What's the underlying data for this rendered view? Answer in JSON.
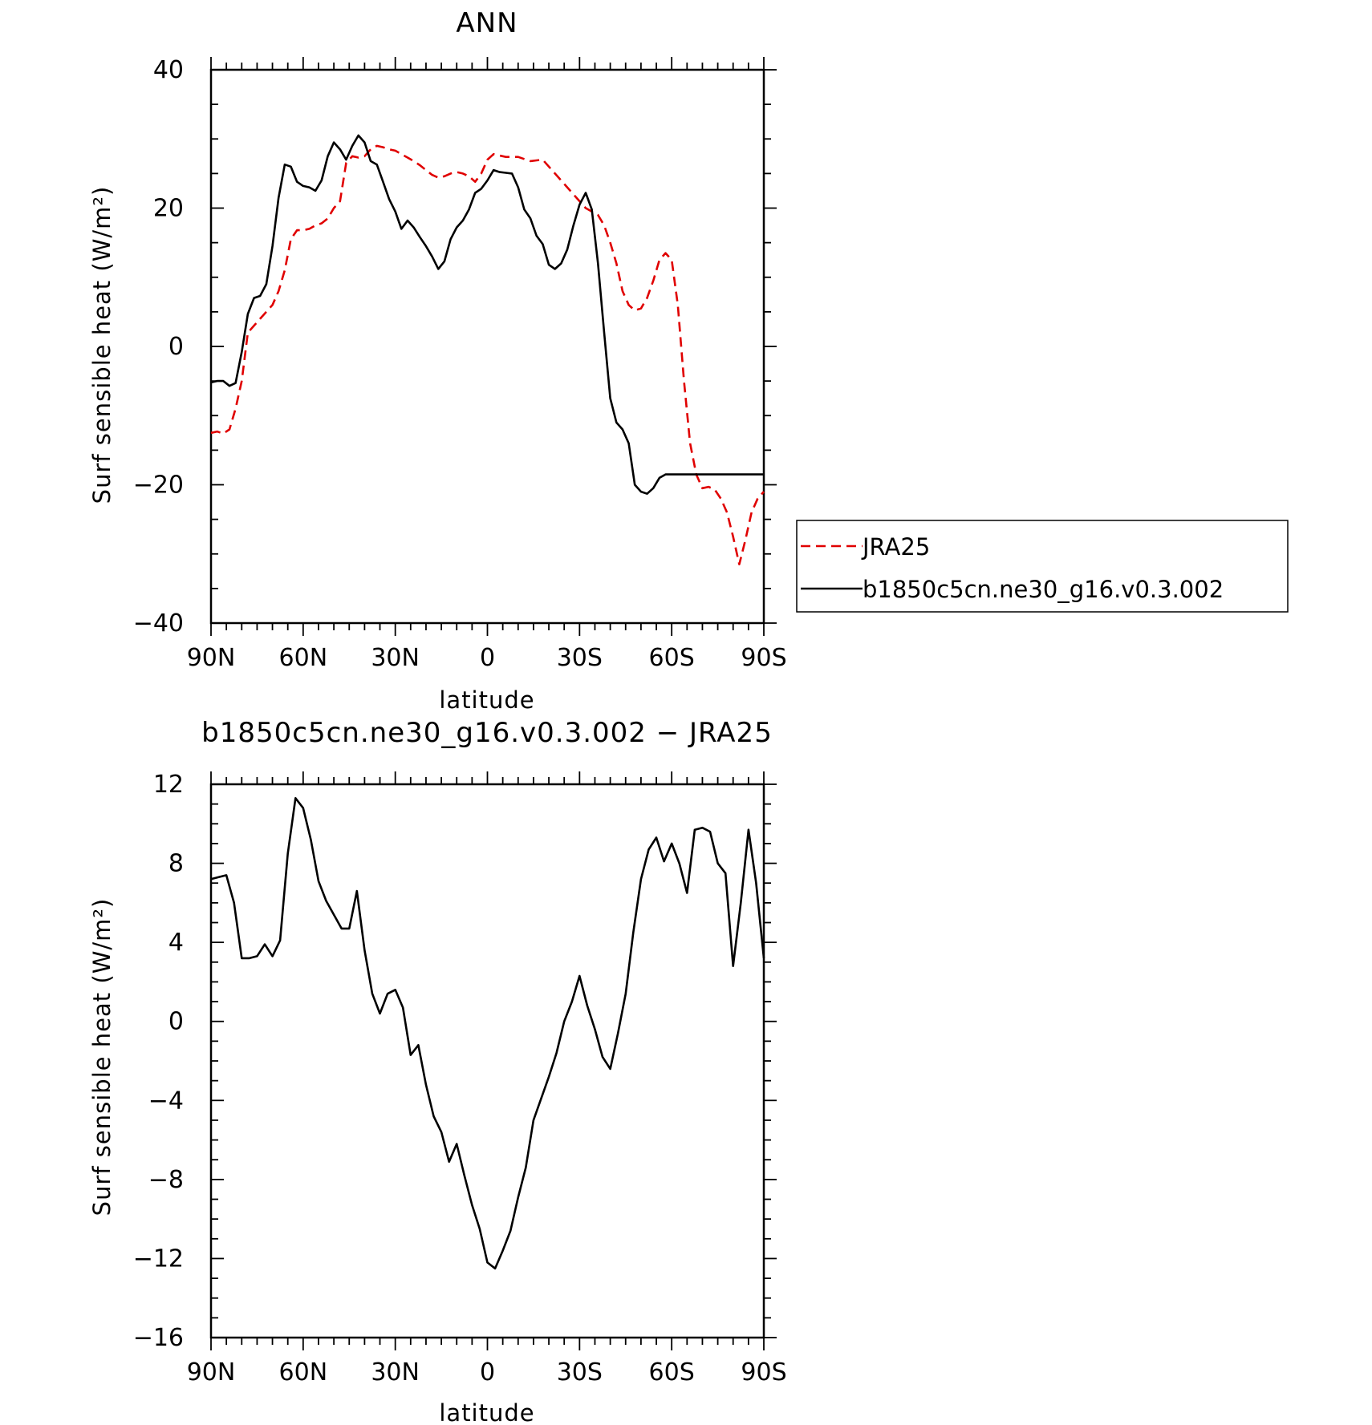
{
  "chart_data": [
    {
      "type": "line",
      "title": "ANN",
      "xlabel": "latitude",
      "ylabel": "Surf sensible heat (W/m²)",
      "ylim": [
        -40,
        40
      ],
      "yticks": [
        "40",
        "20",
        "0",
        "−20",
        "−40"
      ],
      "xticks": [
        "90N",
        "60N",
        "30N",
        "0",
        "30S",
        "60S",
        "90S"
      ],
      "legend": {
        "position": "right-middle",
        "entries": [
          "JRA25",
          "b1850c5cn.ne30_g16.v0.3.002"
        ]
      },
      "series": [
        {
          "name": "JRA25",
          "color": "#e00000",
          "style": "dashed",
          "x": [
            90,
            88,
            86,
            84,
            82,
            80,
            78,
            76,
            74,
            72,
            70,
            68,
            66,
            64,
            62,
            60,
            58,
            56,
            54,
            52,
            50,
            48,
            46,
            44,
            42,
            40,
            38,
            36,
            34,
            32,
            30,
            28,
            26,
            24,
            22,
            20,
            18,
            16,
            14,
            12,
            10,
            8,
            6,
            4,
            2,
            0,
            -2,
            -4,
            -6,
            -8,
            -10,
            -12,
            -14,
            -16,
            -18,
            -20,
            -22,
            -24,
            -26,
            -28,
            -30,
            -32,
            -34,
            -36,
            -38,
            -40,
            -42,
            -44,
            -46,
            -48,
            -50,
            -52,
            -54,
            -56,
            -58,
            -60,
            -62,
            -64,
            -66,
            -68,
            -70,
            -72,
            -74,
            -76,
            -78,
            -80,
            -82,
            -84,
            -86,
            -88,
            -90
          ],
          "y": [
            -12.5,
            -12.3,
            -12.6,
            -12.0,
            -9.0,
            -5.0,
            2.0,
            3.0,
            4.0,
            5.0,
            6.0,
            8.0,
            11.0,
            15.5,
            16.8,
            16.8,
            17.0,
            17.5,
            17.8,
            18.5,
            20.0,
            21.0,
            26.5,
            27.5,
            27.3,
            27.5,
            28.5,
            29.0,
            28.8,
            28.5,
            28.3,
            27.8,
            27.3,
            26.8,
            26.2,
            25.5,
            24.8,
            24.4,
            24.6,
            25.0,
            25.2,
            25.0,
            24.6,
            23.8,
            25.0,
            27.0,
            27.8,
            27.6,
            27.4,
            27.4,
            27.4,
            27.1,
            26.8,
            26.9,
            27.0,
            26.0,
            25.0,
            24.0,
            23.0,
            22.0,
            21.0,
            20.0,
            19.5,
            19.0,
            17.5,
            15.0,
            12.0,
            8.0,
            6.0,
            5.2,
            5.5,
            7.0,
            9.5,
            12.5,
            13.5,
            12.5,
            6.0,
            -5.0,
            -14.0,
            -18.5,
            -20.5,
            -20.3,
            -20.7,
            -22.0,
            -24.0,
            -27.5,
            -31.5,
            -28.0,
            -24.0,
            -22.0,
            -21.0
          ]
        },
        {
          "name": "b1850c5cn.ne30_g16.v0.3.002",
          "color": "#000000",
          "style": "solid",
          "x": [
            90,
            88,
            86,
            84,
            82,
            80,
            78,
            76,
            74,
            72,
            70,
            68,
            66,
            64,
            62,
            60,
            58,
            56,
            54,
            52,
            50,
            48,
            46,
            44,
            42,
            40,
            38,
            36,
            34,
            32,
            30,
            28,
            26,
            24,
            22,
            20,
            18,
            16,
            14,
            12,
            10,
            8,
            6,
            4,
            2,
            0,
            -2,
            -4,
            -6,
            -8,
            -10,
            -12,
            -14,
            -16,
            -18,
            -20,
            -22,
            -24,
            -26,
            -28,
            -30,
            -32,
            -34,
            -36,
            -38,
            -40,
            -42,
            -44,
            -46,
            -48,
            -50,
            -52,
            -54,
            -56,
            -58,
            -60,
            -62,
            -64,
            -66,
            -68,
            -70,
            -72,
            -74,
            -76,
            -78,
            -80,
            -82,
            -84,
            -86,
            -88,
            -90
          ],
          "y": [
            -5.2,
            -5.0,
            -5.0,
            -5.7,
            -5.3,
            -0.8,
            4.7,
            7.0,
            7.3,
            9.0,
            14.5,
            21.5,
            26.3,
            26.0,
            23.8,
            23.2,
            23.0,
            22.5,
            24.0,
            27.5,
            29.5,
            28.5,
            27.0,
            29.0,
            30.5,
            29.5,
            26.8,
            26.3,
            23.8,
            21.3,
            19.5,
            17.0,
            18.2,
            17.2,
            15.8,
            14.5,
            13.0,
            11.2,
            12.3,
            15.5,
            17.2,
            18.2,
            19.8,
            22.2,
            22.8,
            24.0,
            25.5,
            25.2,
            25.1,
            25.0,
            23.0,
            19.8,
            18.5,
            16.0,
            14.8,
            11.8,
            11.2,
            12.0,
            14.0,
            17.5,
            20.5,
            22.2,
            19.8,
            12.0,
            2.0,
            -7.5,
            -11.0,
            -12.0,
            -14.0,
            -20.0,
            -21.0,
            -21.3,
            -20.5,
            -19.0,
            -18.5,
            -18.5,
            -18.5,
            -18.5,
            -18.5,
            -18.5,
            -18.5,
            -18.5,
            -18.5,
            -18.5,
            -18.5,
            -18.5,
            -18.5,
            -18.5,
            -18.5,
            -18.5,
            -18.5
          ]
        }
      ]
    },
    {
      "type": "line",
      "title": "b1850c5cn.ne30_g16.v0.3.002 − JRA25",
      "xlabel": "latitude",
      "ylabel": "Surf sensible heat (W/m²)",
      "ylim": [
        -16,
        12
      ],
      "yticks": [
        "12",
        "8",
        "4",
        "0",
        "−4",
        "−8",
        "−12",
        "−16"
      ],
      "xticks": [
        "90N",
        "60N",
        "30N",
        "0",
        "30S",
        "60S",
        "90S"
      ],
      "series": [
        {
          "color": "#000000",
          "style": "solid",
          "x": [
            90,
            87.5,
            85,
            82.5,
            80,
            77.5,
            75,
            72.5,
            70,
            67.5,
            65,
            62.5,
            60,
            57.5,
            55,
            52.5,
            50,
            47.5,
            45,
            42.5,
            40,
            37.5,
            35,
            32.5,
            30,
            27.5,
            25,
            22.5,
            20,
            17.5,
            15,
            12.5,
            10,
            7.5,
            5,
            2.5,
            0,
            -2.5,
            -5,
            -7.5,
            -10,
            -12.5,
            -15,
            -17.5,
            -20,
            -22.5,
            -25,
            -27.5,
            -30,
            -32.5,
            -35,
            -37.5,
            -40,
            -42.5,
            -45,
            -47.5,
            -50,
            -52.5,
            -55,
            -57.5,
            -60,
            -62.5,
            -65,
            -67.5,
            -70,
            -72.5,
            -75,
            -77.5,
            -80,
            -82.5,
            -85,
            -87.5,
            -90
          ],
          "y": [
            7.2,
            7.3,
            7.4,
            6.0,
            3.2,
            3.2,
            3.3,
            3.9,
            3.3,
            4.1,
            8.5,
            11.3,
            10.8,
            9.2,
            7.1,
            6.1,
            5.4,
            4.7,
            4.7,
            6.6,
            3.6,
            1.4,
            0.4,
            1.4,
            1.6,
            0.7,
            -1.7,
            -1.2,
            -3.2,
            -4.8,
            -5.6,
            -7.1,
            -6.2,
            -7.8,
            -9.3,
            -10.5,
            -12.2,
            -12.5,
            -11.6,
            -10.6,
            -8.9,
            -7.4,
            -5.0,
            -3.9,
            -2.8,
            -1.6,
            0.0,
            1.0,
            2.3,
            0.8,
            -0.4,
            -1.8,
            -2.4,
            -0.6,
            1.4,
            4.5,
            7.2,
            8.7,
            9.3,
            8.1,
            9.0,
            8.0,
            6.5,
            9.7,
            9.8,
            9.6,
            8.0,
            7.5,
            2.8,
            6.0,
            9.7,
            7.0,
            3.2
          ]
        }
      ]
    }
  ]
}
